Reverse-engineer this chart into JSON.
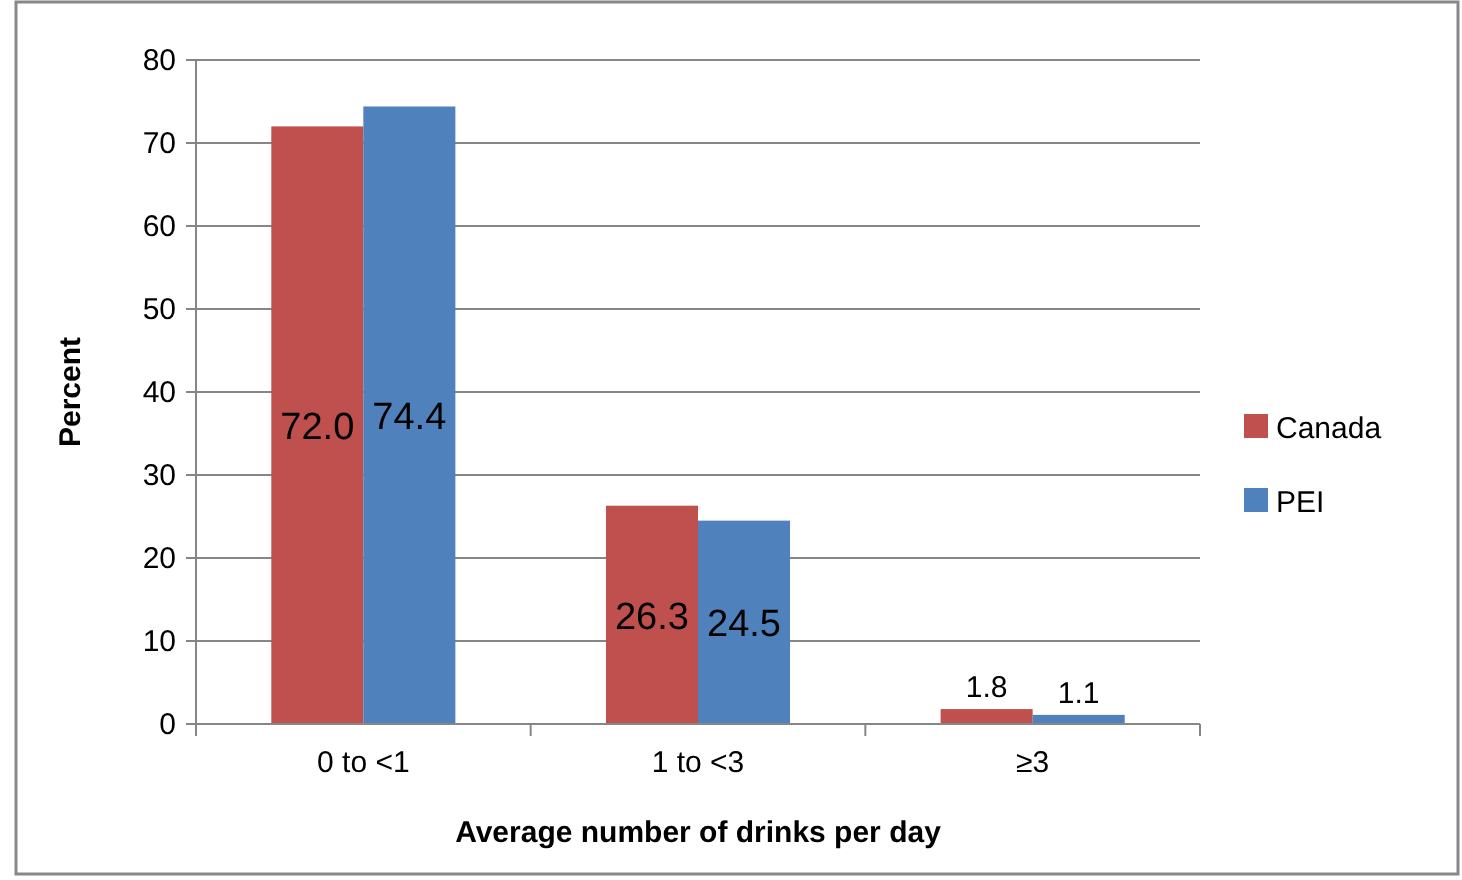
{
  "chart_data": {
    "type": "bar",
    "xlabel": "Average number of drinks per day",
    "ylabel": "Percent",
    "categories": [
      "0 to <1",
      "1 to <3",
      "≥3"
    ],
    "series": [
      {
        "name": "Canada",
        "color": "#c0504d",
        "values": [
          72.0,
          26.3,
          1.8
        ]
      },
      {
        "name": "PEI",
        "color": "#4f81bd",
        "values": [
          74.4,
          24.5,
          1.1
        ]
      }
    ],
    "value_labels": [
      [
        "72.0",
        "26.3",
        "1.8"
      ],
      [
        "74.4",
        "24.5",
        "1.1"
      ]
    ],
    "ylim": [
      0,
      80
    ],
    "yticks": [
      0,
      10,
      20,
      30,
      40,
      50,
      60,
      70,
      80
    ],
    "grid": "y",
    "legend": "right"
  }
}
